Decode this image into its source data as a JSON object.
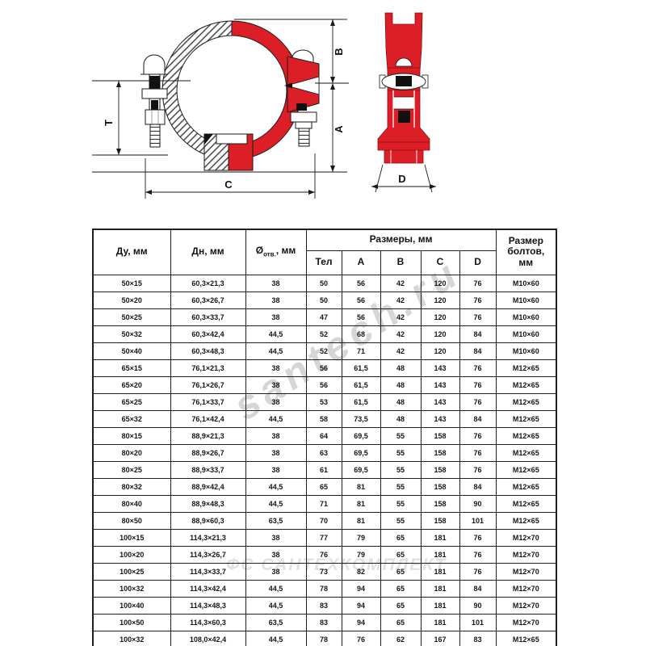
{
  "drawing": {
    "accent_color": "#dc1f26",
    "front_view": {
      "labels": {
        "t": "T",
        "b": "B",
        "a": "A",
        "c": "C"
      }
    },
    "side_view": {
      "label_d": "D"
    }
  },
  "watermarks": {
    "diagonal": "santech.ru",
    "horizontal": "ФС САНТЕХКОМПЛЕКТ"
  },
  "table": {
    "col_headers": {
      "du": "Ду, мм",
      "dn": "Дн, мм",
      "hole_prefix": "Ø",
      "hole_sub": "отв.",
      "hole_suffix": ", мм",
      "sizes_group": "Размеры, мм",
      "size_cols": [
        "Тел",
        "А",
        "В",
        "С",
        "D"
      ],
      "bolts": "Размер\nболтов,\nмм"
    },
    "rows": [
      [
        "50×15",
        "60,3×21,3",
        "38",
        "50",
        "56",
        "42",
        "120",
        "76",
        "М10×60"
      ],
      [
        "50×20",
        "60,3×26,7",
        "38",
        "50",
        "56",
        "42",
        "120",
        "76",
        "М10×60"
      ],
      [
        "50×25",
        "60,3×33,7",
        "38",
        "47",
        "56",
        "42",
        "120",
        "76",
        "М10×60"
      ],
      [
        "50×32",
        "60,3×42,4",
        "44,5",
        "52",
        "68",
        "42",
        "120",
        "84",
        "М10×60"
      ],
      [
        "50×40",
        "60,3×48,3",
        "44,5",
        "52",
        "71",
        "42",
        "120",
        "84",
        "М10×60"
      ],
      [
        "65×15",
        "76,1×21,3",
        "38",
        "56",
        "61,5",
        "48",
        "143",
        "76",
        "М12×65"
      ],
      [
        "65×20",
        "76,1×26,7",
        "38",
        "56",
        "61,5",
        "48",
        "143",
        "76",
        "М12×65"
      ],
      [
        "65×25",
        "76,1×33,7",
        "38",
        "53",
        "61,5",
        "48",
        "143",
        "76",
        "М12×65"
      ],
      [
        "65×32",
        "76,1×42,4",
        "44,5",
        "58",
        "73,5",
        "48",
        "143",
        "84",
        "М12×65"
      ],
      [
        "80×15",
        "88,9×21,3",
        "38",
        "64",
        "69,5",
        "55",
        "158",
        "76",
        "М12×65"
      ],
      [
        "80×20",
        "88,9×26,7",
        "38",
        "63",
        "69,5",
        "55",
        "158",
        "76",
        "М12×65"
      ],
      [
        "80×25",
        "88,9×33,7",
        "38",
        "61",
        "69,5",
        "55",
        "158",
        "76",
        "М12×65"
      ],
      [
        "80×32",
        "88,9×42,4",
        "44,5",
        "65",
        "81",
        "55",
        "158",
        "84",
        "М12×65"
      ],
      [
        "80×40",
        "88,9×48,3",
        "44,5",
        "71",
        "81",
        "55",
        "158",
        "90",
        "М12×65"
      ],
      [
        "80×50",
        "88,9×60,3",
        "63,5",
        "70",
        "81",
        "55",
        "158",
        "101",
        "М12×65"
      ],
      [
        "100×15",
        "114,3×21,3",
        "38",
        "77",
        "79",
        "65",
        "181",
        "76",
        "М12×70"
      ],
      [
        "100×20",
        "114,3×26,7",
        "38",
        "76",
        "79",
        "65",
        "181",
        "76",
        "М12×70"
      ],
      [
        "100×25",
        "114,3×33,7",
        "38",
        "73",
        "82",
        "65",
        "181",
        "76",
        "М12×70"
      ],
      [
        "100×32",
        "114,3×42,4",
        "44,5",
        "78",
        "94",
        "65",
        "181",
        "84",
        "М12×70"
      ],
      [
        "100×40",
        "114,3×48,3",
        "44,5",
        "83",
        "94",
        "65",
        "181",
        "90",
        "М12×70"
      ],
      [
        "100×50",
        "114,3×60,3",
        "63,5",
        "83",
        "94",
        "65",
        "181",
        "101",
        "М12×70"
      ],
      [
        "100×32",
        "108,0×42,4",
        "44,5",
        "78",
        "76",
        "62",
        "167",
        "83",
        "М12×65"
      ]
    ]
  }
}
